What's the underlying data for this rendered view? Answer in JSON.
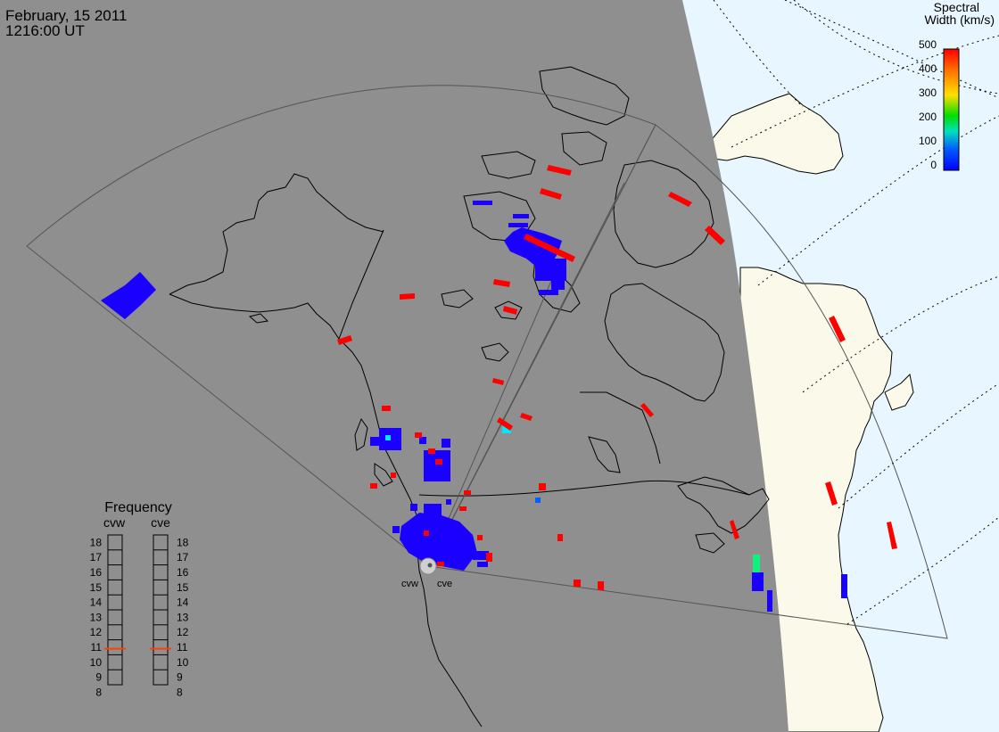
{
  "header": {
    "date": "February, 15 2011",
    "time": "1216:00 UT"
  },
  "colorbar": {
    "title_line1": "Spectral",
    "title_line2": "Width (km/s)",
    "ticks": [
      "500",
      "400",
      "300",
      "200",
      "100",
      "0"
    ],
    "colors": [
      "#ff0000",
      "#ff8000",
      "#ffe000",
      "#00dd00",
      "#00e0c0",
      "#0060ff",
      "#0000ff"
    ]
  },
  "frequency_panel": {
    "title": "Frequency",
    "radar_left": "cvw",
    "radar_right": "cve",
    "ticks": [
      "18",
      "17",
      "16",
      "15",
      "14",
      "13",
      "12",
      "11",
      "10",
      "9",
      "8"
    ],
    "cvw_value": 10.9,
    "cve_value": 10.9,
    "indicator_color": "#ff4000"
  },
  "radars": {
    "west_label": "cvw",
    "east_label": "cve"
  },
  "colors": {
    "night_side": "#8f8f8f",
    "day_ocean": "#e8f6ff",
    "day_land": "#fbfaea",
    "echo_red": "#ff0000",
    "echo_blue": "#1a00ff",
    "echo_cyan": "#00e8ff",
    "echo_green": "#10f080"
  }
}
